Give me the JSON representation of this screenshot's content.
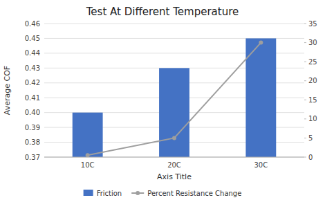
{
  "chart_data": {
    "type": "bar",
    "title": "Test At Different Temperature",
    "xlabel": "Axis Title",
    "ylabel": "Average COF",
    "categories": [
      "10C",
      "20C",
      "30C"
    ],
    "series": [
      {
        "name": "Friction",
        "type": "bar",
        "color": "#4472C4",
        "values": [
          0.4,
          0.43,
          0.45
        ]
      },
      {
        "name": "Percent Resistance Change",
        "type": "line",
        "color": "#9E9E9E",
        "marker": "circle",
        "axis": "y2",
        "values": [
          0.5,
          5,
          30
        ]
      }
    ],
    "ylim": [
      0.37,
      0.46
    ],
    "yticks": [
      0.37,
      0.38,
      0.39,
      {
        "value": 0.4,
        "label": "0.40"
      },
      0.41,
      0.42,
      0.43,
      0.44,
      0.45,
      0.46
    ],
    "y2lim": [
      0,
      35
    ],
    "y2ticks": [
      0,
      5,
      10,
      15,
      20,
      25,
      30,
      35
    ],
    "grid": true,
    "legend": "bottom"
  }
}
